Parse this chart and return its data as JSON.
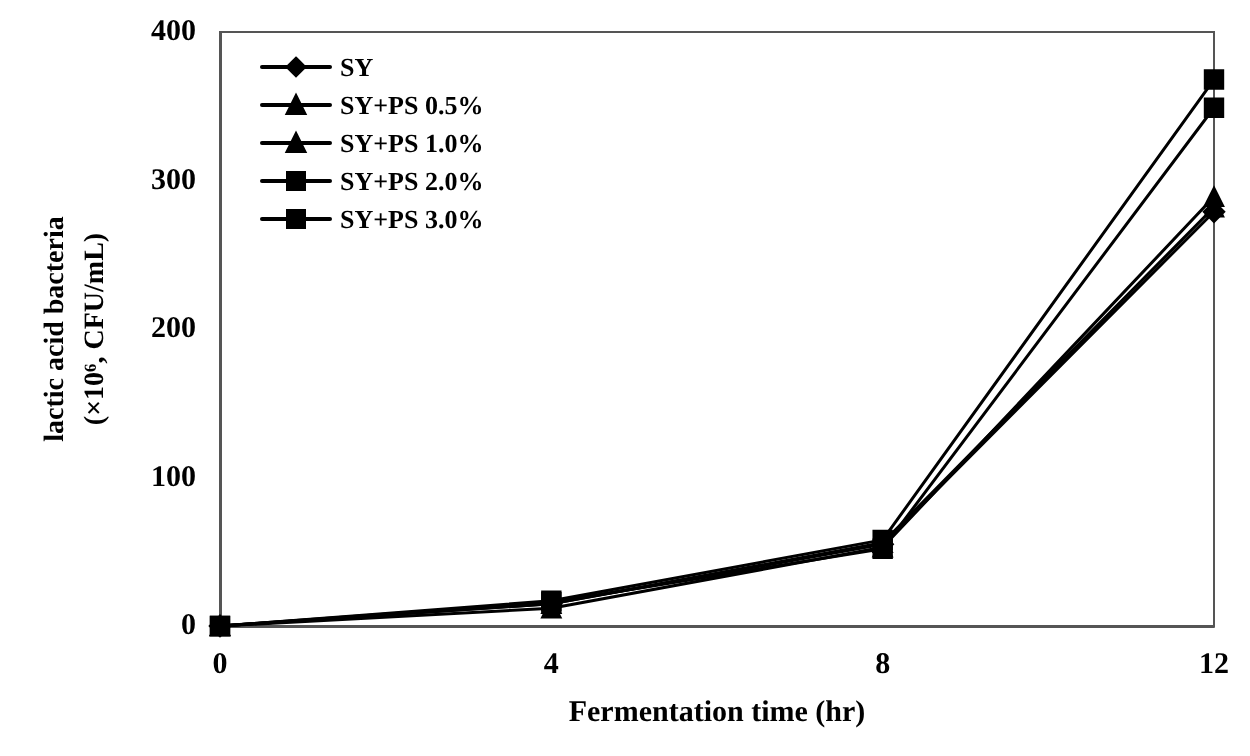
{
  "chart_data": {
    "type": "line",
    "xlabel": "Fermentation time (hr)",
    "ylabel": "lactic acid bacteria\n(×10⁶, CFU/mL)",
    "x": [
      0,
      4,
      8,
      12
    ],
    "xlim": [
      0,
      12
    ],
    "xticks": [
      0,
      4,
      8,
      12
    ],
    "ylim": [
      0,
      400
    ],
    "yticks": [
      0,
      100,
      200,
      300,
      400
    ],
    "grid": false,
    "legend": "top left",
    "line_style": "solid",
    "series": [
      {
        "name": "SY",
        "color": "#000000",
        "marker": "diamond",
        "values": [
          0,
          15,
          55,
          279
        ]
      },
      {
        "name": "SY+PS 0.5%",
        "color": "#000000",
        "marker": "triangle",
        "values": [
          0,
          12,
          53,
          289
        ]
      },
      {
        "name": "SY+PS 1.0%",
        "color": "#000000",
        "marker": "triangle",
        "values": [
          0,
          15,
          56,
          282
        ]
      },
      {
        "name": "SY+PS 2.0%",
        "color": "#000000",
        "marker": "square",
        "values": [
          0,
          16,
          52,
          349
        ]
      },
      {
        "name": "SY+PS 3.0%",
        "color": "#000000",
        "marker": "square",
        "values": [
          0,
          17,
          58,
          368
        ]
      }
    ]
  }
}
